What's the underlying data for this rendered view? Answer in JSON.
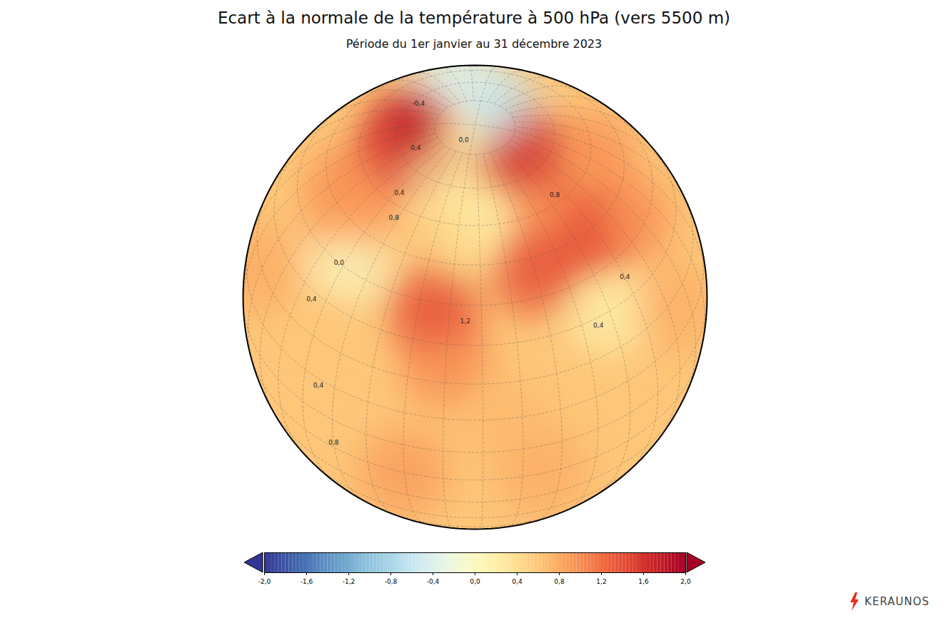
{
  "chart_data": {
    "type": "map",
    "title": "Ecart à la normale de la température à 500 hPa (vers 5500 m)",
    "subtitle": "Période du 1er janvier au 31 décembre 2023",
    "source": "KERAUNOS",
    "colorbar": {
      "range": [
        -2,
        2
      ],
      "ticks": [
        {
          "value": -2,
          "label": "-2,0"
        },
        {
          "value": -1.6,
          "label": "-1,6"
        },
        {
          "value": -1.2,
          "label": "-1,2"
        },
        {
          "value": -0.8,
          "label": "-0,8"
        },
        {
          "value": -0.4,
          "label": "-0,4"
        },
        {
          "value": 0,
          "label": "0,0"
        },
        {
          "value": 0.4,
          "label": "0,4"
        },
        {
          "value": 0.8,
          "label": "0,8"
        },
        {
          "value": 1.2,
          "label": "1,2"
        },
        {
          "value": 1.6,
          "label": "1,6"
        },
        {
          "value": 2,
          "label": "2,0"
        }
      ]
    },
    "points": [
      {
        "lon": 0,
        "lat": 25,
        "value": 1.0
      },
      {
        "lon": -40,
        "lat": 25,
        "value": 0.6
      },
      {
        "lon": 15,
        "lat": 10,
        "value": 0.7
      },
      {
        "lon": -10,
        "lat": -10,
        "value": 0.9
      },
      {
        "lon": 25,
        "lat": -10,
        "value": 0.8
      },
      {
        "lon": -70,
        "lat": 20,
        "value": 0.8
      },
      {
        "lon": 70,
        "lat": 20,
        "value": 0.8
      },
      {
        "lon": 50,
        "lat": 30,
        "value": 0.2
      },
      {
        "lon": -40,
        "lat": 42,
        "value": 0.0
      },
      {
        "lon": -50,
        "lat": 50,
        "value": 0.8
      },
      {
        "lon": 5,
        "lat": 55,
        "value": 0.5
      },
      {
        "lon": 15,
        "lat": 62,
        "value": 0.2
      },
      {
        "lon": -40,
        "lat": 72,
        "value": 0.2
      },
      {
        "lon": -30,
        "lat": 85,
        "value": 0.3
      },
      {
        "lon": 150,
        "lat": 82,
        "value": -0.6
      },
      {
        "lon": -160,
        "lat": 65,
        "value": -0.4
      },
      {
        "lon": 45,
        "lat": 60,
        "value": 1.0
      },
      {
        "lon": 90,
        "lat": 60,
        "value": 1.0
      },
      {
        "lon": 75,
        "lat": 45,
        "value": 1.0
      },
      {
        "lon": -60,
        "lat": 55,
        "value": 1.0
      },
      {
        "lon": -65,
        "lat": 70,
        "value": 1.4
      },
      {
        "lon": -80,
        "lat": 75,
        "value": 1.8
      },
      {
        "lon": 60,
        "lat": 75,
        "value": 1.6
      },
      {
        "lon": -5,
        "lat": 38,
        "value": 1.4
      },
      {
        "lon": 30,
        "lat": 47,
        "value": 1.4
      },
      {
        "lon": 55,
        "lat": 50,
        "value": 1.4
      }
    ],
    "contour_labels": [
      {
        "lon": -42,
        "lat": 40,
        "value": 0,
        "label": "0,0"
      },
      {
        "lon": -20,
        "lat": 84,
        "value": 0,
        "label": "0,0"
      },
      {
        "lon": -60,
        "lat": 74,
        "value": 0.4,
        "label": "0,4"
      },
      {
        "lon": -38,
        "lat": 63,
        "value": 0.4,
        "label": "0,4"
      },
      {
        "lon": -32,
        "lat": 57,
        "value": 0.8,
        "label": "0,8"
      },
      {
        "lon": -45,
        "lat": 28,
        "value": 0.4,
        "label": "0,4"
      },
      {
        "lon": 45,
        "lat": 28,
        "value": 0.4,
        "label": "0,4"
      },
      {
        "lon": 60,
        "lat": 35,
        "value": 0.4,
        "label": "0,4"
      },
      {
        "lon": 55,
        "lat": 62,
        "value": 0.8,
        "label": "0,8"
      },
      {
        "lon": -35,
        "lat": 8,
        "value": 0.4,
        "label": "0,4"
      },
      {
        "lon": -30,
        "lat": -8,
        "value": 0.8,
        "label": "0,8"
      },
      {
        "lon": 5,
        "lat": 36,
        "value": 1.2,
        "label": "1,2"
      },
      {
        "lon": -120,
        "lat": 72,
        "value": -0.4,
        "label": "-0,4"
      }
    ]
  }
}
